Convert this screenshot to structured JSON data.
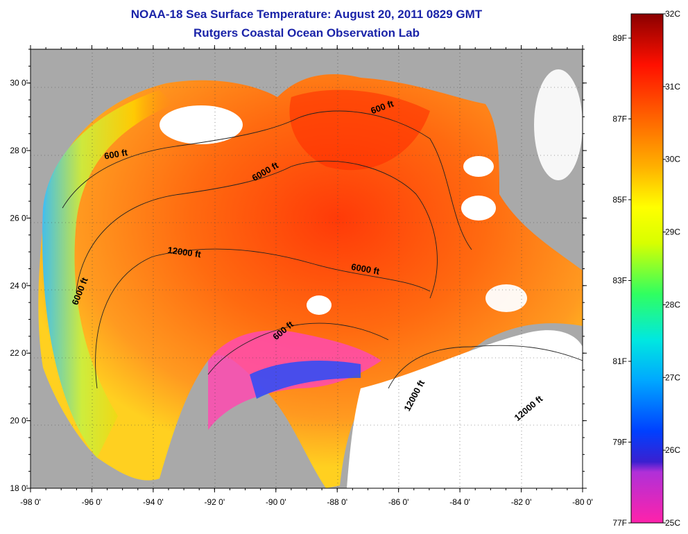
{
  "title": "NOAA-18 Sea Surface Temperature:  August 20, 2011 0829 GMT",
  "subtitle": "Rutgers Coastal Ocean Observation Lab",
  "map": {
    "lon_range": [
      -98,
      -80
    ],
    "lat_range": [
      18,
      31
    ],
    "lon_ticks": [
      {
        "value": -98,
        "label": "-98 0'"
      },
      {
        "value": -96,
        "label": "-96 0'"
      },
      {
        "value": -94,
        "label": "-94 0'"
      },
      {
        "value": -92,
        "label": "-92 0'"
      },
      {
        "value": -90,
        "label": "-90 0'"
      },
      {
        "value": -88,
        "label": "-88 0'"
      },
      {
        "value": -86,
        "label": "-86 0'"
      },
      {
        "value": -84,
        "label": "-84 0'"
      },
      {
        "value": -82,
        "label": "-82 0'"
      },
      {
        "value": -80,
        "label": "-80 0'"
      }
    ],
    "lat_ticks": [
      {
        "value": 30,
        "label": "30 0'"
      },
      {
        "value": 28,
        "label": "28 0'"
      },
      {
        "value": 26,
        "label": "26 0'"
      },
      {
        "value": 24,
        "label": "24 0'"
      },
      {
        "value": 22,
        "label": "22 0'"
      },
      {
        "value": 20,
        "label": "20 0'"
      },
      {
        "value": 18,
        "label": "18 0'"
      }
    ],
    "contour_labels": [
      {
        "text": "600 ft",
        "lon": -86.5,
        "lat": 29.2,
        "angle": -20
      },
      {
        "text": "600 ft",
        "lon": -95.2,
        "lat": 27.8,
        "angle": -10
      },
      {
        "text": "6000 ft",
        "lon": -90.3,
        "lat": 27.3,
        "angle": -30
      },
      {
        "text": "12000 ft",
        "lon": -93.0,
        "lat": 24.9,
        "angle": 8
      },
      {
        "text": "6000 ft",
        "lon": -87.1,
        "lat": 24.4,
        "angle": 10
      },
      {
        "text": "6000 ft",
        "lon": -96.3,
        "lat": 23.8,
        "angle": -68
      },
      {
        "text": "600 ft",
        "lon": -89.7,
        "lat": 22.6,
        "angle": -40
      },
      {
        "text": "12000 ft",
        "lon": -85.4,
        "lat": 20.7,
        "angle": -62
      },
      {
        "text": "12000 ft",
        "lon": -81.7,
        "lat": 20.3,
        "angle": -40
      }
    ],
    "colors": {
      "land": "#a9a9a9",
      "cloud": "#ffffff",
      "gulf_warm": "#ff6a10",
      "shelf_cool": "#20a0ff"
    }
  },
  "colorbar": {
    "celsius_labels": [
      "32C",
      "31C",
      "30C",
      "29C",
      "28C",
      "27C",
      "26C",
      "25C"
    ],
    "fahrenheit_labels": [
      "89F",
      "87F",
      "85F",
      "83F",
      "81F",
      "79F",
      "77F"
    ],
    "c_min": 25,
    "c_max": 32,
    "stops": [
      {
        "t": 0.0,
        "color": "#ff22aa"
      },
      {
        "t": 0.1,
        "color": "#b030d8"
      },
      {
        "t": 0.12,
        "color": "#3a20d0"
      },
      {
        "t": 0.18,
        "color": "#0040ff"
      },
      {
        "t": 0.28,
        "color": "#00a8ff"
      },
      {
        "t": 0.36,
        "color": "#00e8e0"
      },
      {
        "t": 0.45,
        "color": "#30ff60"
      },
      {
        "t": 0.55,
        "color": "#d8ff00"
      },
      {
        "t": 0.62,
        "color": "#ffff00"
      },
      {
        "t": 0.7,
        "color": "#ffb000"
      },
      {
        "t": 0.8,
        "color": "#ff6000"
      },
      {
        "t": 0.9,
        "color": "#ff1000"
      },
      {
        "t": 1.0,
        "color": "#8a0000"
      }
    ]
  }
}
